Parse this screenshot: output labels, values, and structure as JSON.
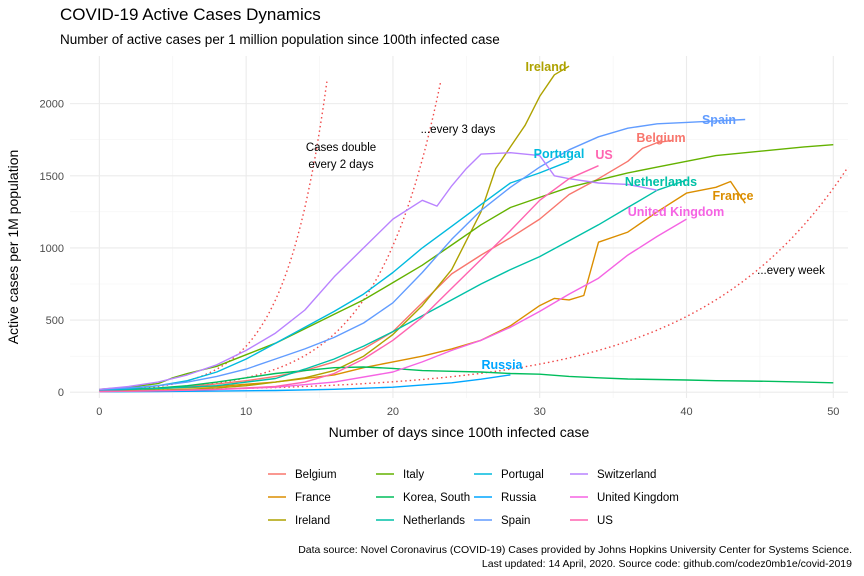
{
  "chart_data": {
    "type": "line",
    "title": "COVID-19 Active Cases Dynamics",
    "subtitle": "Number of active cases per 1 million population since 100th infected case",
    "xlabel": "Number of days since 100th infected case",
    "ylabel": "Active cases per 1M population",
    "xlim": [
      -2,
      51
    ],
    "ylim": [
      -40,
      2330
    ],
    "xticks": [
      0,
      10,
      20,
      30,
      40,
      50
    ],
    "yticks": [
      0,
      500,
      1000,
      1500,
      2000
    ],
    "grid": true,
    "legend_position": "bottom",
    "caption": [
      "Data source: Novel Coronavirus (COVID-19) Cases provided by Johns Hopkins University Center for Systems Science.",
      "Last updated: 14 April, 2020. Source code: github.com/codez0mb1e/covid-2019"
    ],
    "series": [
      {
        "name": "Belgium",
        "color": "#F8766D",
        "label": "Belgium",
        "x": [
          0,
          2,
          4,
          6,
          8,
          10,
          12,
          14,
          16,
          18,
          20,
          22,
          24,
          26,
          28,
          30,
          32,
          34,
          36,
          37,
          38,
          39
        ],
        "y": [
          15,
          20,
          28,
          40,
          58,
          80,
          110,
          150,
          210,
          300,
          420,
          620,
          820,
          950,
          1070,
          1200,
          1370,
          1480,
          1600,
          1690,
          1730,
          1745
        ]
      },
      {
        "name": "France",
        "color": "#DB8E00",
        "label": "France",
        "x": [
          0,
          4,
          8,
          12,
          16,
          18,
          20,
          22,
          24,
          26,
          28,
          30,
          31,
          32,
          33,
          34,
          36,
          38,
          40,
          41,
          42,
          43,
          44
        ],
        "y": [
          20,
          25,
          40,
          70,
          120,
          170,
          210,
          250,
          300,
          360,
          460,
          600,
          650,
          640,
          670,
          1040,
          1110,
          1250,
          1380,
          1400,
          1420,
          1460,
          1310
        ]
      },
      {
        "name": "Ireland",
        "color": "#AEA200",
        "label": "Ireland",
        "x": [
          0,
          2,
          4,
          6,
          8,
          10,
          12,
          14,
          16,
          18,
          20,
          22,
          24,
          26,
          27,
          28,
          29,
          30,
          31,
          32
        ],
        "y": [
          10,
          12,
          15,
          20,
          30,
          45,
          70,
          100,
          150,
          250,
          400,
          600,
          850,
          1250,
          1550,
          1700,
          1850,
          2050,
          2200,
          2260
        ]
      },
      {
        "name": "Italy",
        "color": "#64B200",
        "label": "",
        "x": [
          0,
          2,
          4,
          5,
          6,
          8,
          10,
          12,
          14,
          16,
          18,
          20,
          22,
          24,
          26,
          28,
          30,
          32,
          34,
          36,
          38,
          40,
          42,
          44,
          46,
          48,
          50
        ],
        "y": [
          20,
          35,
          60,
          100,
          130,
          180,
          260,
          340,
          440,
          540,
          640,
          760,
          880,
          1020,
          1160,
          1280,
          1350,
          1420,
          1470,
          1520,
          1560,
          1600,
          1640,
          1660,
          1680,
          1700,
          1715
        ]
      },
      {
        "name": "Korea, South",
        "color": "#00BD5C",
        "label": "",
        "x": [
          0,
          2,
          4,
          6,
          8,
          10,
          12,
          14,
          16,
          18,
          20,
          22,
          24,
          26,
          28,
          30,
          32,
          34,
          36,
          38,
          40,
          42,
          44,
          46,
          48,
          50
        ],
        "y": [
          15,
          20,
          30,
          45,
          70,
          100,
          130,
          150,
          170,
          175,
          165,
          150,
          145,
          140,
          130,
          125,
          110,
          100,
          92,
          88,
          85,
          80,
          78,
          75,
          70,
          65
        ]
      },
      {
        "name": "Netherlands",
        "color": "#00C1A7",
        "label": "Netherlands",
        "x": [
          0,
          4,
          8,
          12,
          14,
          16,
          18,
          20,
          22,
          24,
          26,
          28,
          30,
          32,
          34,
          36,
          38,
          40
        ],
        "y": [
          15,
          25,
          45,
          95,
          160,
          230,
          320,
          420,
          530,
          640,
          750,
          850,
          940,
          1050,
          1160,
          1280,
          1400,
          1470
        ]
      },
      {
        "name": "Portugal",
        "color": "#00BADE",
        "label": "Portugal",
        "x": [
          0,
          2,
          4,
          6,
          8,
          10,
          12,
          14,
          16,
          18,
          20,
          22,
          24,
          26,
          28,
          30,
          32
        ],
        "y": [
          15,
          25,
          45,
          80,
          140,
          230,
          340,
          450,
          560,
          680,
          830,
          1000,
          1150,
          1300,
          1450,
          1520,
          1600
        ]
      },
      {
        "name": "Russia",
        "color": "#00A6FF",
        "label": "Russia",
        "x": [
          0,
          4,
          8,
          12,
          16,
          20,
          24,
          26,
          28
        ],
        "y": [
          3,
          5,
          8,
          12,
          20,
          35,
          65,
          90,
          120
        ]
      },
      {
        "name": "Spain",
        "color": "#619CFF",
        "label": "Spain",
        "x": [
          0,
          2,
          4,
          6,
          8,
          10,
          12,
          14,
          16,
          18,
          20,
          22,
          24,
          26,
          28,
          30,
          32,
          34,
          36,
          38,
          40,
          42,
          44
        ],
        "y": [
          20,
          30,
          45,
          70,
          110,
          160,
          230,
          300,
          380,
          480,
          620,
          830,
          1060,
          1260,
          1420,
          1560,
          1680,
          1770,
          1830,
          1860,
          1870,
          1880,
          1890
        ]
      },
      {
        "name": "Switzerland",
        "color": "#B983FF",
        "label": "",
        "x": [
          0,
          2,
          4,
          6,
          8,
          10,
          12,
          14,
          16,
          18,
          20,
          22,
          23,
          24,
          25,
          26,
          28,
          30,
          31,
          32,
          34,
          36,
          38
        ],
        "y": [
          20,
          40,
          70,
          120,
          190,
          290,
          410,
          570,
          800,
          1000,
          1200,
          1330,
          1290,
          1430,
          1550,
          1650,
          1660,
          1640,
          1500,
          1480,
          1450,
          1440,
          1400
        ]
      },
      {
        "name": "United Kingdom",
        "color": "#F564E3",
        "label": "United Kingdom",
        "x": [
          0,
          4,
          8,
          12,
          16,
          20,
          22,
          24,
          26,
          28,
          30,
          32,
          34,
          36,
          38,
          40
        ],
        "y": [
          5,
          10,
          18,
          35,
          70,
          140,
          210,
          290,
          360,
          450,
          560,
          680,
          790,
          950,
          1080,
          1200
        ]
      },
      {
        "name": "US",
        "color": "#FF64B0",
        "label": "US",
        "x": [
          0,
          4,
          8,
          12,
          14,
          16,
          18,
          20,
          22,
          24,
          26,
          28,
          30,
          32,
          34
        ],
        "y": [
          5,
          10,
          20,
          40,
          70,
          130,
          230,
          360,
          520,
          720,
          920,
          1120,
          1330,
          1480,
          1570
        ]
      }
    ],
    "reference_lines": [
      {
        "label": "Cases double\nevery 2 days",
        "doubling_days": 2,
        "start": 10
      },
      {
        "label": "...every 3 days",
        "doubling_days": 3,
        "start": 10
      },
      {
        "label": "...every week",
        "doubling_days": 7,
        "start": 10
      }
    ],
    "reference_color": "#F04848",
    "legend_columns": [
      [
        "Belgium",
        "France",
        "Ireland"
      ],
      [
        "Italy",
        "Korea, South",
        "Netherlands"
      ],
      [
        "Portugal",
        "Russia",
        "Spain"
      ],
      [
        "Switzerland",
        "United Kingdom",
        "US"
      ]
    ]
  }
}
